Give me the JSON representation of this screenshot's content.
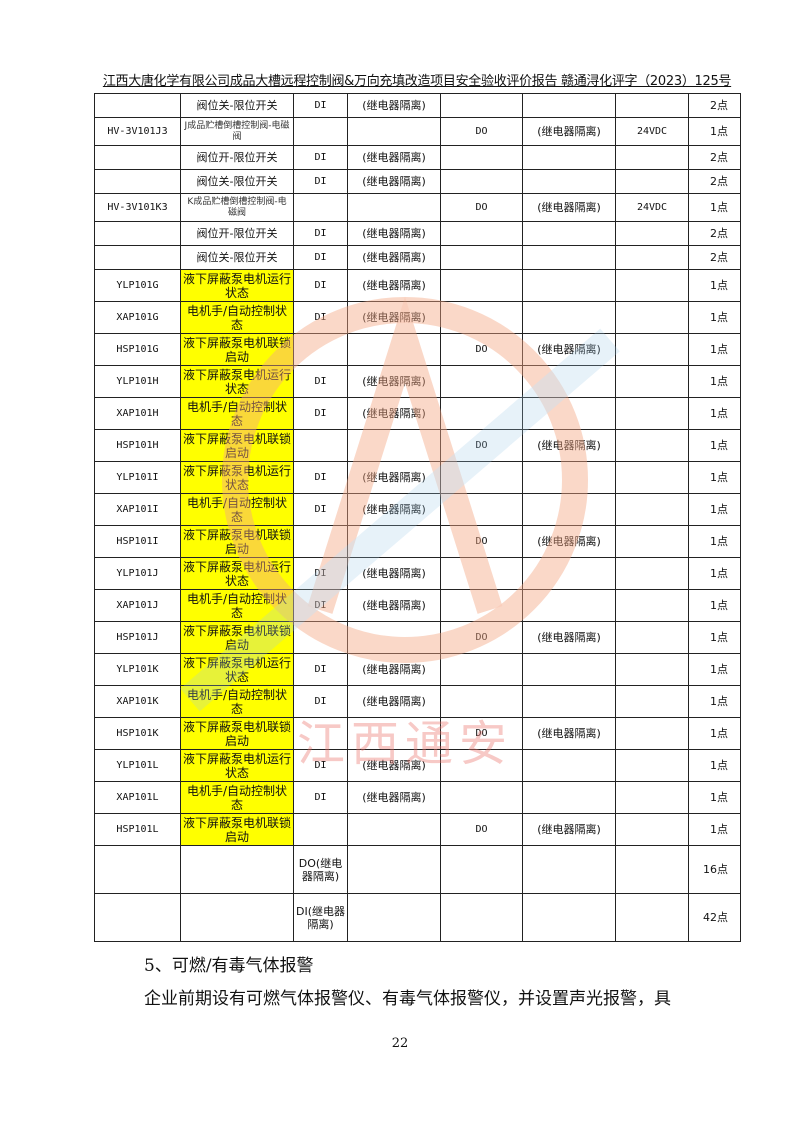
{
  "header": {
    "title": "江西大唐化学有限公司成品大槽远程控制阀&万向充填改造项目安全验收评价报告 赣通浔化评字（2023）125号"
  },
  "table": {
    "rows": [
      {
        "cells": [
          "",
          "阀位关-限位开关",
          "DI",
          "(继电器隔离)",
          "",
          "",
          "",
          "2点"
        ],
        "type": "plain"
      },
      {
        "cells": [
          "HV-3V101J3",
          "J成品贮槽倒槽控制阀-电磁阀",
          "",
          "",
          "DO",
          "(继电器隔离)",
          "24VDC",
          "1点"
        ],
        "type": "small"
      },
      {
        "cells": [
          "",
          "阀位开-限位开关",
          "DI",
          "(继电器隔离)",
          "",
          "",
          "",
          "2点"
        ],
        "type": "plain"
      },
      {
        "cells": [
          "",
          "阀位关-限位开关",
          "DI",
          "(继电器隔离)",
          "",
          "",
          "",
          "2点"
        ],
        "type": "plain"
      },
      {
        "cells": [
          "HV-3V101K3",
          "K成品贮槽倒槽控制阀-电磁阀",
          "",
          "",
          "DO",
          "(继电器隔离)",
          "24VDC",
          "1点"
        ],
        "type": "small"
      },
      {
        "cells": [
          "",
          "阀位开-限位开关",
          "DI",
          "(继电器隔离)",
          "",
          "",
          "",
          "2点"
        ],
        "type": "plain"
      },
      {
        "cells": [
          "",
          "阀位关-限位开关",
          "DI",
          "(继电器隔离)",
          "",
          "",
          "",
          "2点"
        ],
        "type": "plain"
      },
      {
        "cells": [
          "YLP101G",
          "液下屏蔽泵电机运行状态",
          "DI",
          "(继电器隔离)",
          "",
          "",
          "",
          "1点"
        ],
        "type": "hl"
      },
      {
        "cells": [
          "XAP101G",
          "电机手/自动控制状态",
          "DI",
          "(继电器隔离)",
          "",
          "",
          "",
          "1点"
        ],
        "type": "hl"
      },
      {
        "cells": [
          "HSP101G",
          "液下屏蔽泵电机联锁启动",
          "",
          "",
          "DO",
          "(继电器隔离)",
          "",
          "1点"
        ],
        "type": "hl"
      },
      {
        "cells": [
          "YLP101H",
          "液下屏蔽泵电机运行状态",
          "DI",
          "(继电器隔离)",
          "",
          "",
          "",
          "1点"
        ],
        "type": "hl"
      },
      {
        "cells": [
          "XAP101H",
          "电机手/自动控制状态",
          "DI",
          "(继电器隔离)",
          "",
          "",
          "",
          "1点"
        ],
        "type": "hl"
      },
      {
        "cells": [
          "HSP101H",
          "液下屏蔽泵电机联锁启动",
          "",
          "",
          "DO",
          "(继电器隔离)",
          "",
          "1点"
        ],
        "type": "hl"
      },
      {
        "cells": [
          "YLP101I",
          "液下屏蔽泵电机运行状态",
          "DI",
          "(继电器隔离)",
          "",
          "",
          "",
          "1点"
        ],
        "type": "hl"
      },
      {
        "cells": [
          "XAP101I",
          "电机手/自动控制状态",
          "DI",
          "(继电器隔离)",
          "",
          "",
          "",
          "1点"
        ],
        "type": "hl"
      },
      {
        "cells": [
          "HSP101I",
          "液下屏蔽泵电机联锁启动",
          "",
          "",
          "DO",
          "(继电器隔离)",
          "",
          "1点"
        ],
        "type": "hl"
      },
      {
        "cells": [
          "YLP101J",
          "液下屏蔽泵电机运行状态",
          "DI",
          "(继电器隔离)",
          "",
          "",
          "",
          "1点"
        ],
        "type": "hl"
      },
      {
        "cells": [
          "XAP101J",
          "电机手/自动控制状态",
          "DI",
          "(继电器隔离)",
          "",
          "",
          "",
          "1点"
        ],
        "type": "hl"
      },
      {
        "cells": [
          "HSP101J",
          "液下屏蔽泵电机联锁启动",
          "",
          "",
          "DO",
          "(继电器隔离)",
          "",
          "1点"
        ],
        "type": "hl"
      },
      {
        "cells": [
          "YLP101K",
          "液下屏蔽泵电机运行状态",
          "DI",
          "(继电器隔离)",
          "",
          "",
          "",
          "1点"
        ],
        "type": "hl"
      },
      {
        "cells": [
          "XAP101K",
          "电机手/自动控制状态",
          "DI",
          "(继电器隔离)",
          "",
          "",
          "",
          "1点"
        ],
        "type": "hl"
      },
      {
        "cells": [
          "HSP101K",
          "液下屏蔽泵电机联锁启动",
          "",
          "",
          "DO",
          "(继电器隔离)",
          "",
          "1点"
        ],
        "type": "hl"
      },
      {
        "cells": [
          "YLP101L",
          "液下屏蔽泵电机运行状态",
          "DI",
          "(继电器隔离)",
          "",
          "",
          "",
          "1点"
        ],
        "type": "hl"
      },
      {
        "cells": [
          "XAP101L",
          "电机手/自动控制状态",
          "DI",
          "(继电器隔离)",
          "",
          "",
          "",
          "1点"
        ],
        "type": "hl"
      },
      {
        "cells": [
          "HSP101L",
          "液下屏蔽泵电机联锁启动",
          "",
          "",
          "DO",
          "(继电器隔离)",
          "",
          "1点"
        ],
        "type": "hl"
      },
      {
        "cells": [
          "",
          "",
          "DO(继电器隔离)",
          "",
          "",
          "",
          "",
          "16点"
        ],
        "type": "total"
      },
      {
        "cells": [
          "",
          "",
          "DI(继电器隔离)",
          "",
          "",
          "",
          "",
          "42点"
        ],
        "type": "total"
      }
    ]
  },
  "section": {
    "heading": "5、可燃/有毒气体报警",
    "paragraph": "企业前期设有可燃气体报警仪、有毒气体报警仪，并设置声光报警，具"
  },
  "page_number": "22",
  "watermark": {
    "text": "江西通安",
    "colors": {
      "ring": "#f4a582",
      "text": "#e8736a",
      "stroke": "#9ec9e6"
    }
  }
}
